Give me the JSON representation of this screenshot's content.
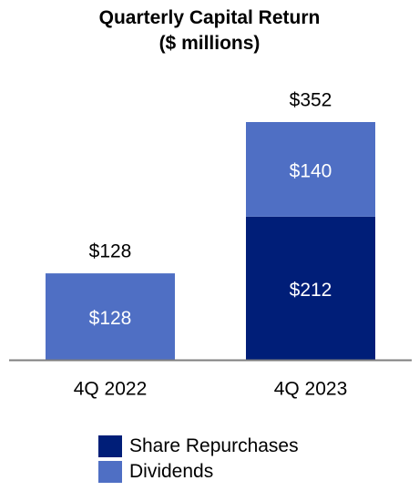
{
  "colors": {
    "share_repurchases": "#001E78",
    "dividends": "#4F6FC4",
    "axis": "#7F7F7F",
    "text": "#000000",
    "inner_label": "#FFFFFF"
  },
  "chart_data": {
    "type": "bar",
    "stacked": true,
    "title": [
      "Quarterly Capital Return",
      "($ millions)"
    ],
    "categories": [
      "4Q 2022",
      "4Q 2023"
    ],
    "series": [
      {
        "name": "Share Repurchases",
        "values": [
          0,
          212
        ],
        "labels": [
          "",
          "$212"
        ]
      },
      {
        "name": "Dividends",
        "values": [
          128,
          140
        ],
        "labels": [
          "$128",
          "$140"
        ]
      }
    ],
    "totals": [
      128,
      352
    ],
    "total_labels": [
      "$128",
      "$352"
    ],
    "ylim": [
      0,
      352
    ],
    "grid": false,
    "legend_position": "bottom"
  }
}
